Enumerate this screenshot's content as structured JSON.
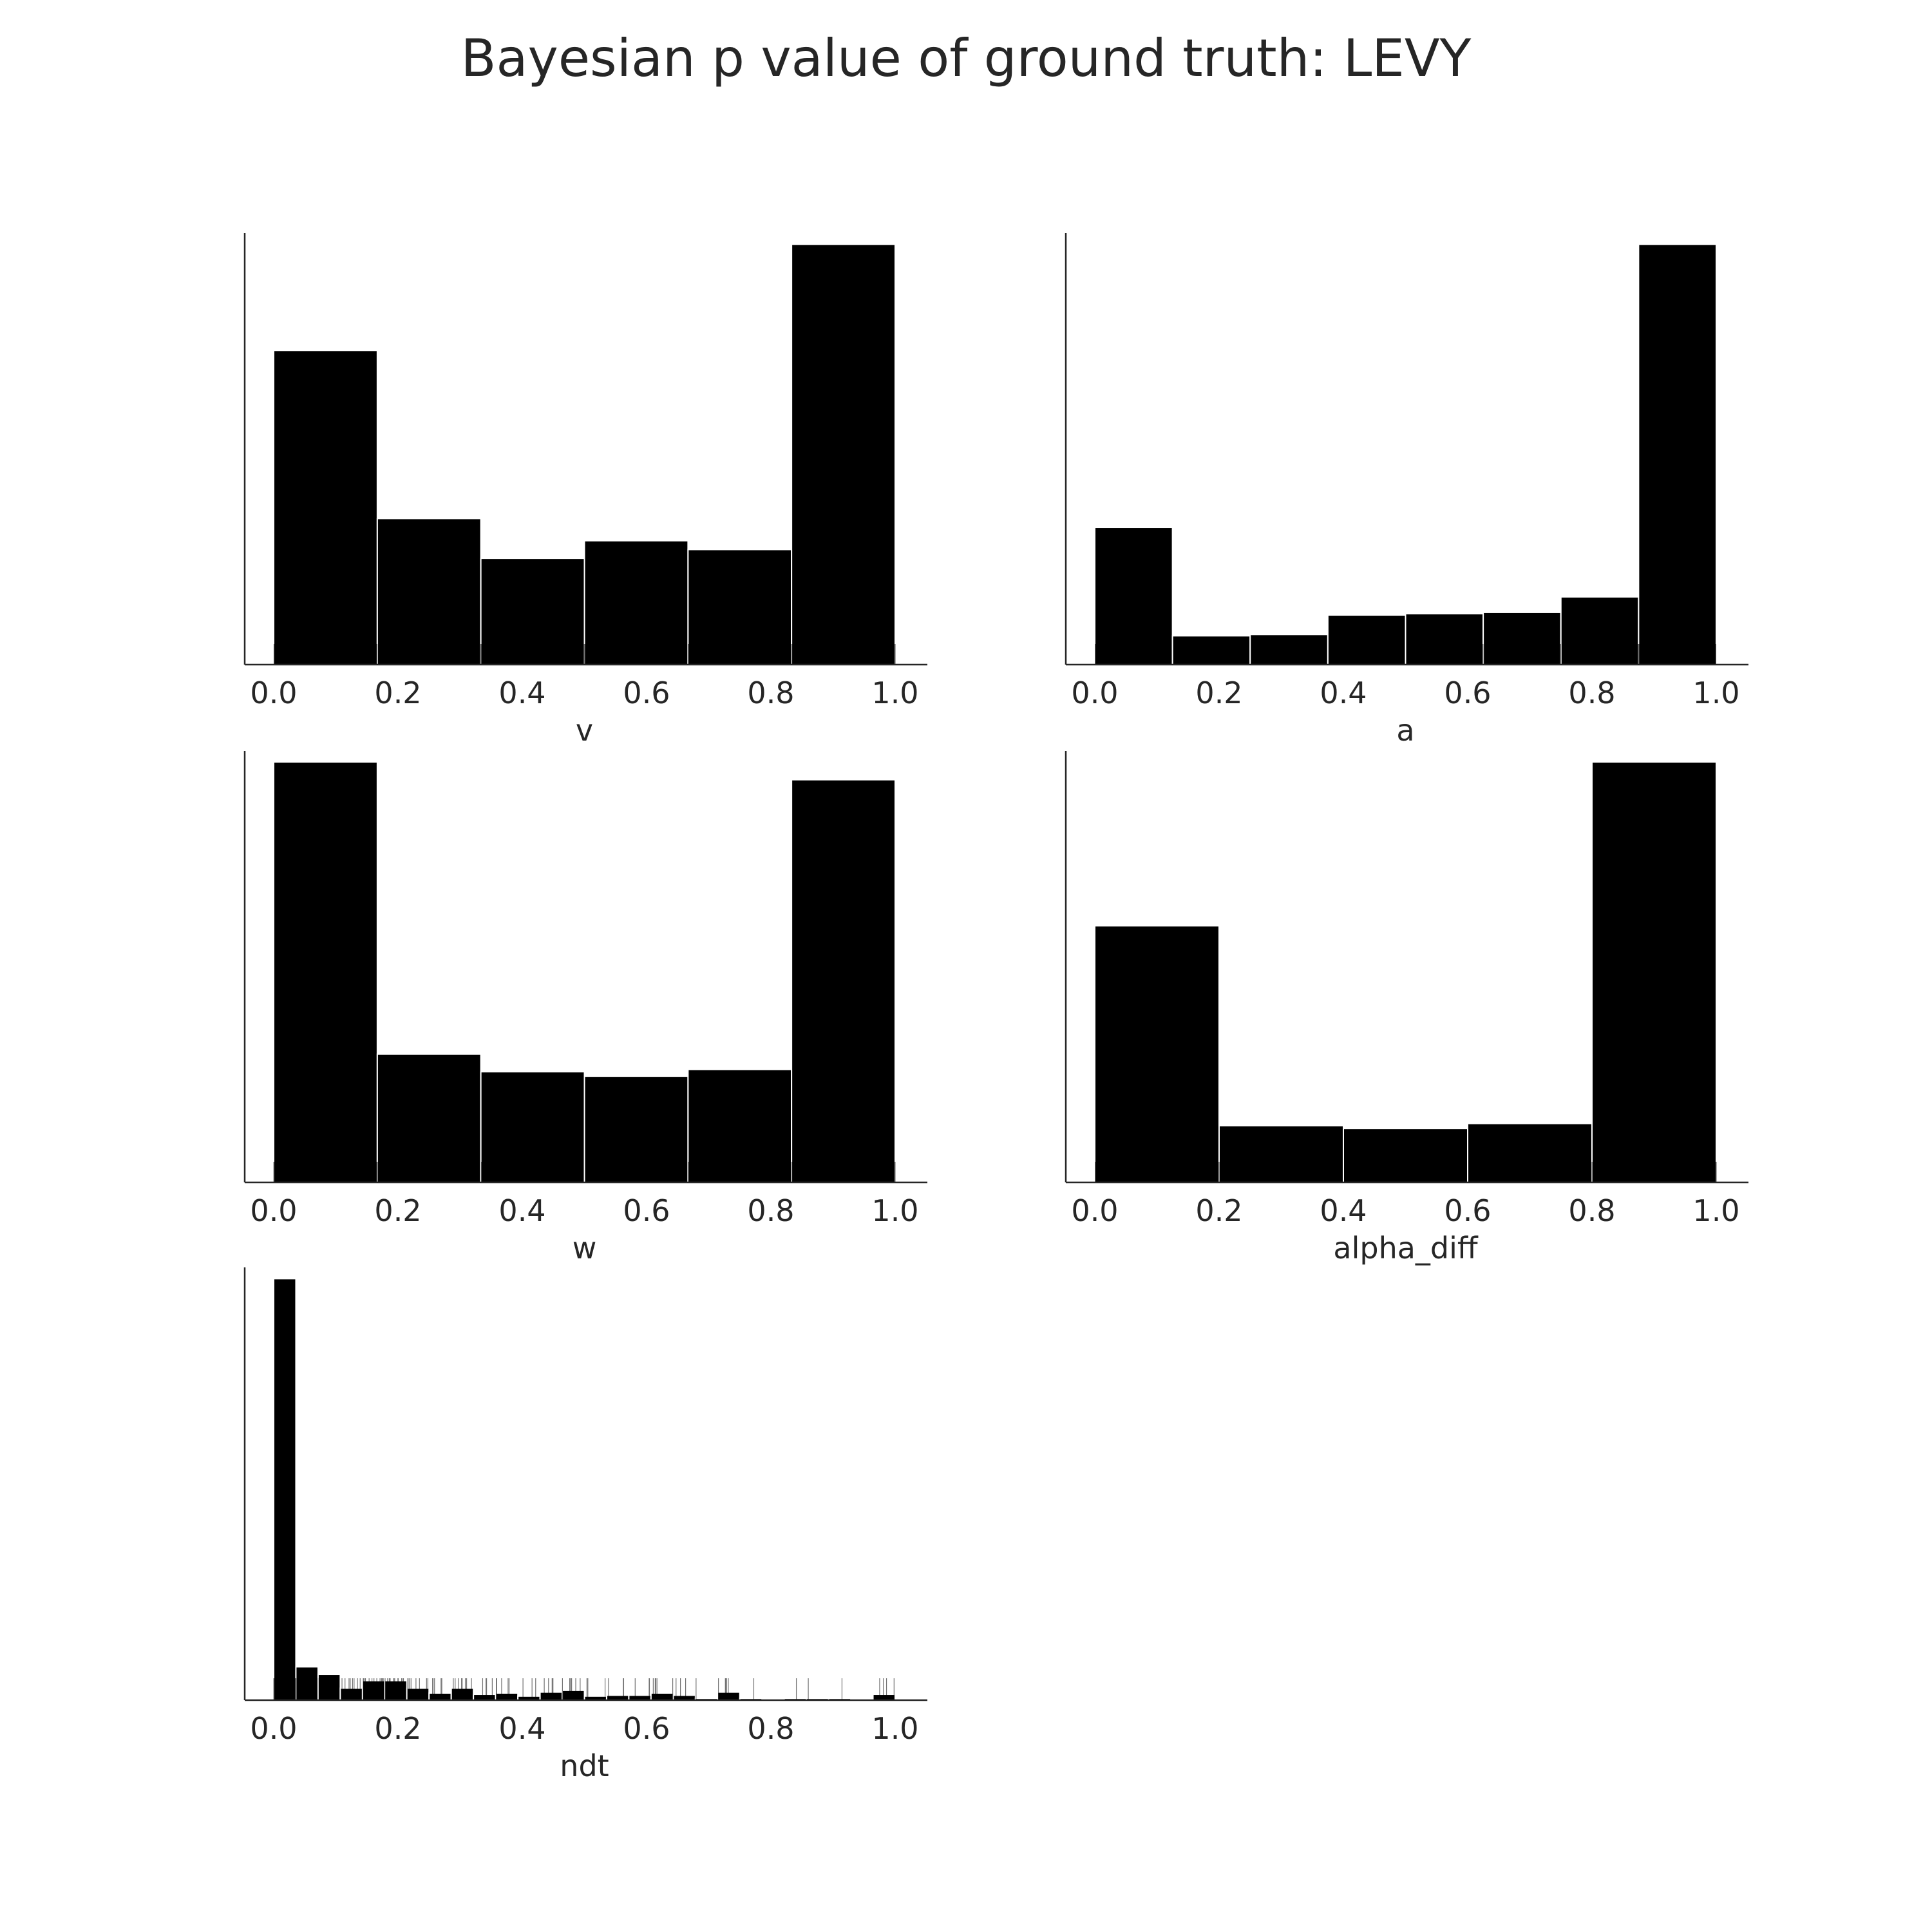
{
  "figure": {
    "title": "Bayesian p value of ground truth: LEVY"
  },
  "colors": {
    "background": "#ffffff",
    "bar_fill": "#000000",
    "bar_edge": "#ffffff",
    "axis": "#262626",
    "rug": "#000000",
    "text": "#262626"
  },
  "chart_data": [
    {
      "type": "bar",
      "panel": "top-left",
      "xlabel": "v",
      "ylabel": "",
      "xlim": [
        0.0,
        1.0
      ],
      "xticks": [
        "0.0",
        "0.2",
        "0.4",
        "0.6",
        "0.8",
        "1.0"
      ],
      "bin_edges": [
        0.0,
        0.1667,
        0.3333,
        0.5,
        0.6667,
        0.8333,
        1.0
      ],
      "values": [
        0.71,
        0.33,
        0.24,
        0.28,
        0.26,
        0.95
      ],
      "y_axis_ticks_shown": false,
      "grid": false,
      "rug": true
    },
    {
      "type": "bar",
      "panel": "top-right",
      "xlabel": "a",
      "ylabel": "",
      "xlim": [
        0.0,
        1.0
      ],
      "xticks": [
        "0.0",
        "0.2",
        "0.4",
        "0.6",
        "0.8",
        "1.0"
      ],
      "bin_edges": [
        0.0,
        0.125,
        0.25,
        0.375,
        0.5,
        0.625,
        0.75,
        0.875,
        1.0
      ],
      "values": [
        0.31,
        0.065,
        0.068,
        0.112,
        0.115,
        0.118,
        0.153,
        0.95
      ],
      "y_axis_ticks_shown": false,
      "grid": false,
      "rug": true
    },
    {
      "type": "bar",
      "panel": "middle-left",
      "xlabel": "w",
      "ylabel": "",
      "xlim": [
        0.0,
        1.0
      ],
      "xticks": [
        "0.0",
        "0.2",
        "0.4",
        "0.6",
        "0.8",
        "1.0"
      ],
      "bin_edges": [
        0.0,
        0.1667,
        0.3333,
        0.5,
        0.6667,
        0.8333,
        1.0
      ],
      "values": [
        0.95,
        0.29,
        0.25,
        0.24,
        0.255,
        0.91
      ],
      "y_axis_ticks_shown": false,
      "grid": false,
      "rug": true
    },
    {
      "type": "bar",
      "panel": "middle-right",
      "xlabel": "alpha_diff",
      "ylabel": "",
      "xlim": [
        0.0,
        1.0
      ],
      "xticks": [
        "0.0",
        "0.2",
        "0.4",
        "0.6",
        "0.8",
        "1.0"
      ],
      "bin_edges": [
        0.0,
        0.2,
        0.4,
        0.6,
        0.8,
        1.0
      ],
      "values": [
        0.58,
        0.128,
        0.122,
        0.133,
        0.95
      ],
      "y_axis_ticks_shown": false,
      "grid": false,
      "rug": true
    },
    {
      "type": "bar",
      "panel": "bottom-left",
      "xlabel": "ndt",
      "ylabel": "",
      "xlim": [
        0.0,
        1.0
      ],
      "xticks": [
        "0.0",
        "0.2",
        "0.4",
        "0.6",
        "0.8",
        "1.0"
      ],
      "bin_edges": [
        0.0,
        0.0357,
        0.0714,
        0.1071,
        0.1429,
        0.1786,
        0.2143,
        0.25,
        0.2857,
        0.3214,
        0.3571,
        0.3929,
        0.4286,
        0.4643,
        0.5,
        0.5357,
        0.5714,
        0.6071,
        0.6429,
        0.6786,
        0.7143,
        0.75,
        0.7857,
        0.8214,
        0.8571,
        0.8929,
        0.9286,
        0.9643,
        1.0
      ],
      "values": [
        0.95,
        0.075,
        0.058,
        0.027,
        0.044,
        0.044,
        0.027,
        0.016,
        0.027,
        0.013,
        0.016,
        0.009,
        0.018,
        0.022,
        0.009,
        0.011,
        0.011,
        0.016,
        0.011,
        0.004,
        0.018,
        0.004,
        0.0,
        0.004,
        0.004,
        0.004,
        0.0,
        0.013
      ],
      "y_axis_ticks_shown": false,
      "grid": false,
      "rug": true
    }
  ]
}
